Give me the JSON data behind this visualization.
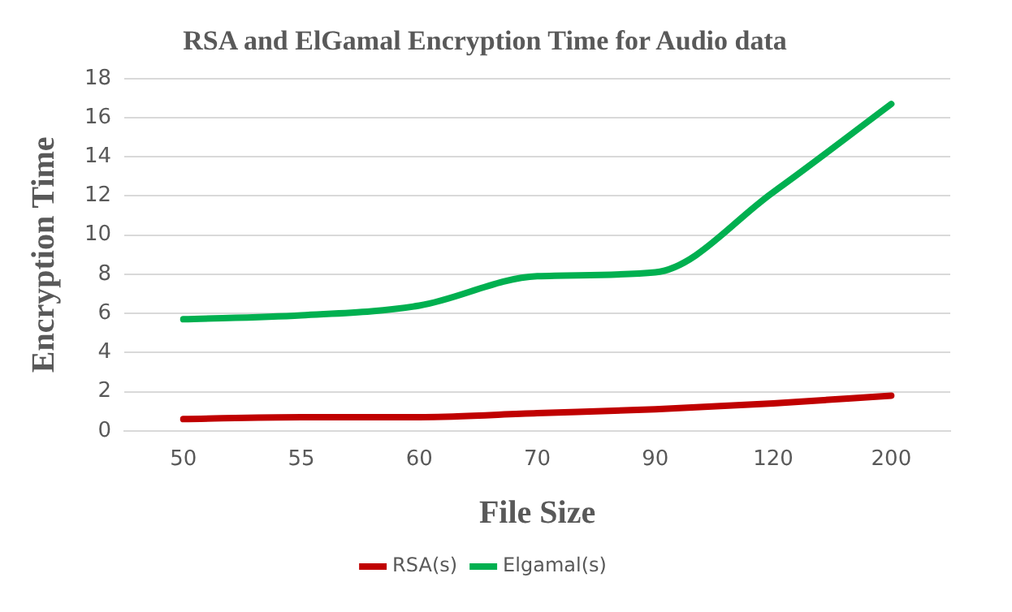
{
  "chart_data": {
    "type": "line",
    "title": "RSA and ElGamal Encryption Time for Audio data",
    "xlabel": "File Size",
    "ylabel": "Encryption Time",
    "categories": [
      "50",
      "55",
      "60",
      "70",
      "90",
      "120",
      "200"
    ],
    "series": [
      {
        "name": "RSA(s)",
        "color": "#c00000",
        "values": [
          0.6,
          0.7,
          0.7,
          0.9,
          1.1,
          1.4,
          1.8
        ]
      },
      {
        "name": "Elgamal(s)",
        "color": "#00b050",
        "values": [
          5.7,
          5.9,
          6.4,
          7.9,
          8.1,
          12.2,
          16.7
        ]
      }
    ],
    "ylim": [
      0,
      18
    ],
    "yticks": [
      0,
      2,
      4,
      6,
      8,
      10,
      12,
      14,
      16,
      18
    ],
    "grid": "y",
    "legend": "bottom",
    "marker": "none",
    "line_style": "solid"
  }
}
